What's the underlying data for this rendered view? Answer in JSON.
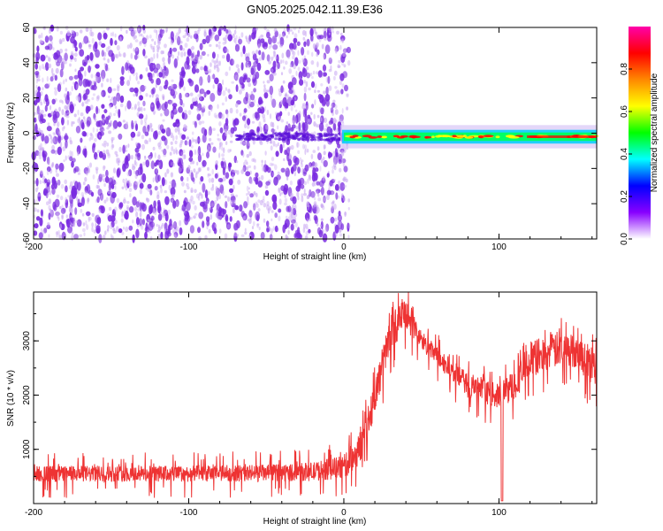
{
  "title": "GN05.2025.042.11.39.E36",
  "chart_data": [
    {
      "type": "heatmap",
      "xlabel": "Height of straight line (km)",
      "ylabel": "Frequency (Hz)",
      "xlim": [
        -200,
        163
      ],
      "ylim": [
        -60,
        60
      ],
      "x_ticks": [
        -200,
        -100,
        0,
        100
      ],
      "y_ticks": [
        60,
        40,
        20,
        0,
        -20,
        -40,
        -60
      ],
      "colorbar": {
        "label": "Normalized spectral amplitude",
        "range": [
          0,
          1
        ],
        "ticks": [
          "0.0",
          "0.2",
          "0.4",
          "0.6",
          "0.8"
        ],
        "tick_values": [
          0.0,
          0.2,
          0.4,
          0.6,
          0.8
        ],
        "colors": [
          "#ffffff",
          "#8800ff",
          "#0000ff",
          "#00ffff",
          "#00ff00",
          "#ffff00",
          "#ff8800",
          "#ff0000",
          "#ff00aa"
        ]
      },
      "features": {
        "noise_region_x": [
          -200,
          0
        ],
        "noise_color": "#7a2be0",
        "line_region_x": [
          0,
          163
        ],
        "line_center_frequency": -2,
        "line_band_halfwidth_hz": 3,
        "line_peak_color": "#ff0000",
        "line_mid_color": "#00ff66",
        "line_edge_color": "#00ccff"
      }
    },
    {
      "type": "line",
      "xlabel": "Height of straight line (km)",
      "ylabel": "SNR (10 * v/v)",
      "xlim": [
        -200,
        163
      ],
      "ylim": [
        0,
        3900
      ],
      "x_ticks": [
        -200,
        -100,
        0,
        100
      ],
      "y_ticks": [
        1000,
        2000,
        3000
      ],
      "color": "#ee3333",
      "envelope": {
        "x": [
          -200,
          -150,
          -100,
          -50,
          -20,
          0,
          10,
          20,
          30,
          40,
          50,
          60,
          80,
          90,
          100,
          110,
          120,
          140,
          150,
          163
        ],
        "low": [
          300,
          300,
          300,
          300,
          300,
          300,
          500,
          1400,
          2600,
          3000,
          2700,
          2400,
          1800,
          1700,
          1600,
          1700,
          2100,
          2300,
          2300,
          1800
        ],
        "high": [
          700,
          700,
          700,
          720,
          760,
          900,
          1300,
          2300,
          3500,
          3800,
          3200,
          2900,
          2400,
          2300,
          2200,
          2500,
          3000,
          3200,
          3100,
          2900
        ]
      },
      "dip": {
        "x": 102,
        "value": 50
      }
    }
  ]
}
